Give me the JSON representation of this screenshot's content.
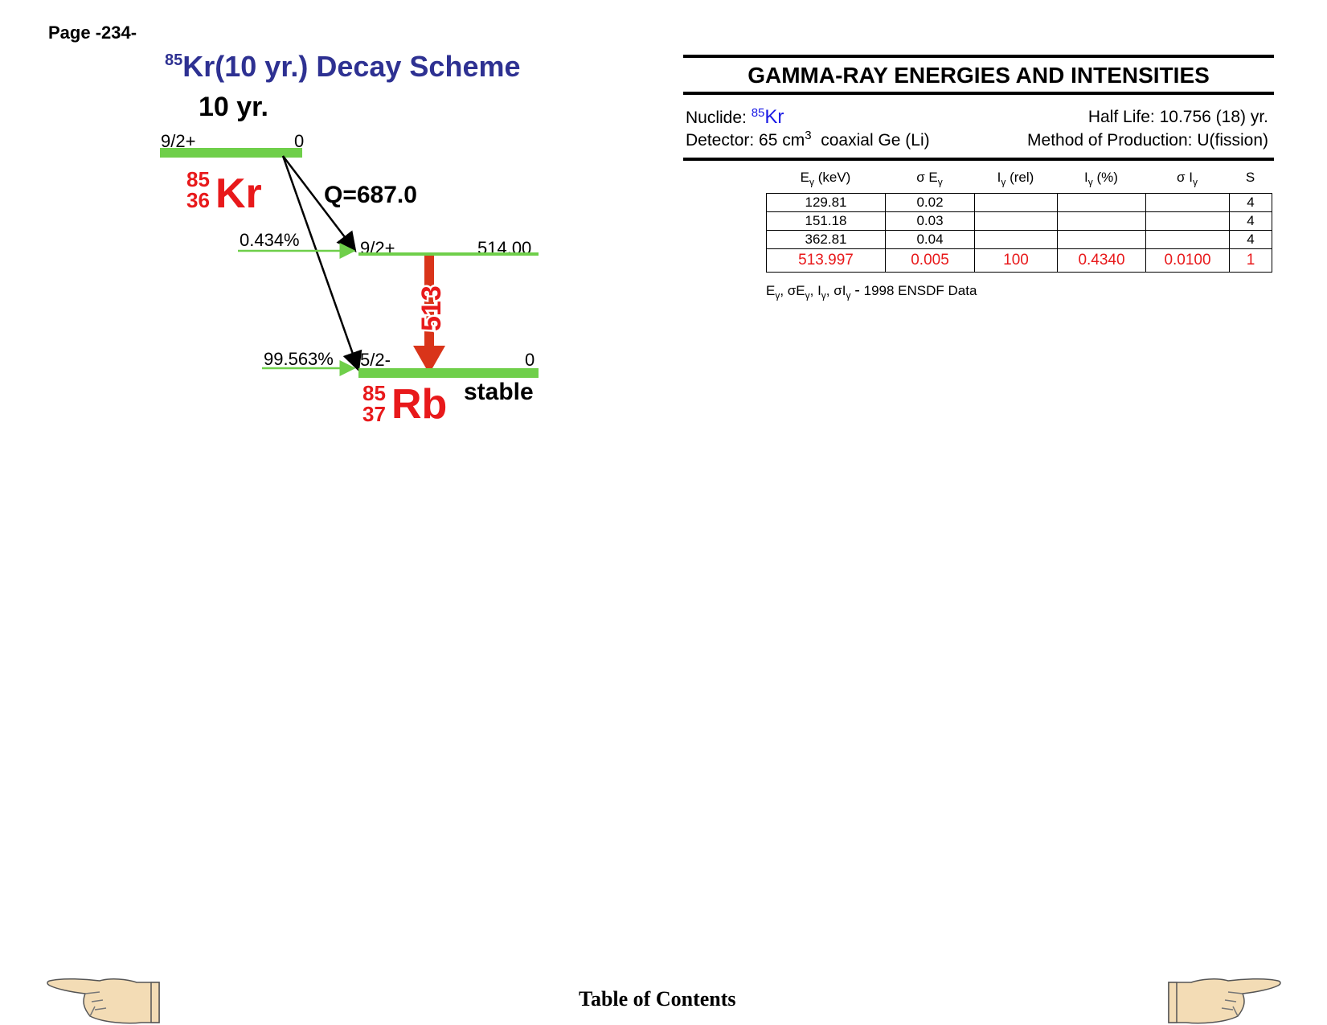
{
  "page_label": "Page -234-",
  "scheme": {
    "title_mass": "85",
    "title_text": "Kr(10 yr.) Decay Scheme",
    "parent_halflife": "10 yr.",
    "parent_level": {
      "spin": "9/2+",
      "energy": "0"
    },
    "parent_nuclide": {
      "mass": "85",
      "z": "36",
      "symbol": "Kr"
    },
    "q_value": "Q=687.0",
    "excited_level": {
      "branch": "0.434%",
      "spin": "9/2+",
      "energy": "514.00"
    },
    "gamma_label": "513",
    "ground_level": {
      "branch": "99.563%",
      "spin": "5/2-",
      "energy": "0"
    },
    "daughter_nuclide": {
      "mass": "85",
      "z": "37",
      "symbol": "Rb"
    },
    "daughter_status": "stable",
    "colors": {
      "level_line": "#6fcf4a",
      "nuclide": "#e8191b",
      "gamma_arrow": "#d9341a",
      "title": "#2e3192"
    }
  },
  "gamma_panel": {
    "title": "GAMMA-RAY ENERGIES AND INTENSITIES",
    "nuclide_label": "Nuclide: ",
    "nuclide_mass": "85",
    "nuclide_symbol": "Kr",
    "half_life": "Half Life: 10.756 (18) yr.",
    "detector_prefix": "Detector: 65 cm",
    "detector_exp": "3",
    "detector_suffix": "  coaxial Ge (Li)",
    "production": "Method of Production: U(fission)",
    "columns": [
      "Eγ (keV)",
      "σ Eγ",
      "Iγ (rel)",
      "Iγ (%)",
      "σ Iγ",
      "S"
    ],
    "rows": [
      [
        "129.81",
        "0.02",
        "",
        "",
        "",
        "4"
      ],
      [
        "151.18",
        "0.03",
        "",
        "",
        "",
        "4"
      ],
      [
        "362.81",
        "0.04",
        "",
        "",
        "",
        "4"
      ],
      [
        "513.997",
        "0.005",
        "100",
        "0.4340",
        "0.0100",
        "1"
      ]
    ],
    "footnote_source": "1998 ENSDF Data"
  },
  "footer": {
    "toc_label": "Table of Contents"
  }
}
